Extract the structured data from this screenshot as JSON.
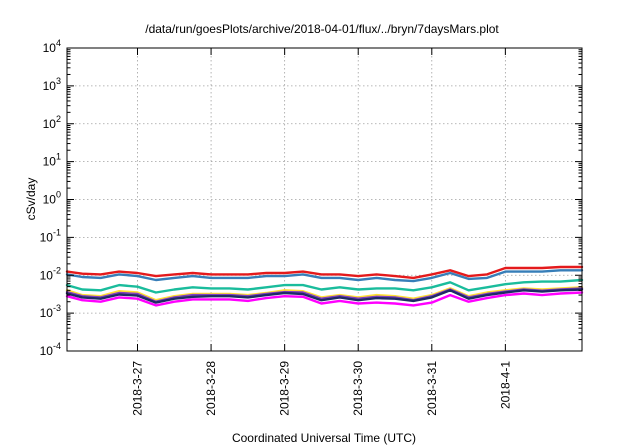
{
  "chart_data": {
    "type": "line",
    "title": "/data/run/goesPlots/archive/2018-04-01/flux/../bryn/7daysMars.plot",
    "xlabel": "Coordinated Universal Time (UTC)",
    "ylabel": "cSv/day",
    "yscale": "log",
    "ylim": [
      0.0001,
      10000
    ],
    "y_ticks": [
      {
        "value": 0.0001,
        "base": "10",
        "exp": "-4"
      },
      {
        "value": 0.001,
        "base": "10",
        "exp": "-3"
      },
      {
        "value": 0.01,
        "base": "10",
        "exp": "-2"
      },
      {
        "value": 0.1,
        "base": "10",
        "exp": "-1"
      },
      {
        "value": 1,
        "base": "10",
        "exp": "0"
      },
      {
        "value": 10,
        "base": "10",
        "exp": "1"
      },
      {
        "value": 100,
        "base": "10",
        "exp": "2"
      },
      {
        "value": 1000,
        "base": "10",
        "exp": "3"
      },
      {
        "value": 10000,
        "base": "10",
        "exp": "4"
      }
    ],
    "xlim": [
      "2018-03-26 01:00",
      "2018-04-02 01:00"
    ],
    "x_ticks": [
      "2018-3-27",
      "2018-3-28",
      "2018-3-29",
      "2018-3-30",
      "2018-3-31",
      "2018-4-1"
    ],
    "grid": true,
    "x": [
      "2018-03-26 01:00",
      "2018-03-26 06:00",
      "2018-03-26 12:00",
      "2018-03-26 18:00",
      "2018-03-27 00:00",
      "2018-03-27 06:00",
      "2018-03-27 12:00",
      "2018-03-27 18:00",
      "2018-03-28 00:00",
      "2018-03-28 06:00",
      "2018-03-28 12:00",
      "2018-03-28 18:00",
      "2018-03-29 00:00",
      "2018-03-29 06:00",
      "2018-03-29 12:00",
      "2018-03-29 18:00",
      "2018-03-30 00:00",
      "2018-03-30 06:00",
      "2018-03-30 12:00",
      "2018-03-30 18:00",
      "2018-03-31 00:00",
      "2018-03-31 06:00",
      "2018-03-31 12:00",
      "2018-03-31 18:00",
      "2018-04-01 00:00",
      "2018-04-01 06:00",
      "2018-04-01 12:00",
      "2018-04-01 18:00",
      "2018-04-02 01:00"
    ],
    "series": [
      {
        "color": "#e41a1c",
        "values": [
          0.0125,
          0.011,
          0.0105,
          0.0125,
          0.0115,
          0.0095,
          0.0105,
          0.0115,
          0.0105,
          0.0105,
          0.0105,
          0.0115,
          0.0115,
          0.0125,
          0.0105,
          0.0105,
          0.0095,
          0.0105,
          0.0095,
          0.0085,
          0.0105,
          0.0135,
          0.0095,
          0.0105,
          0.0155,
          0.0155,
          0.0155,
          0.0165,
          0.0165
        ]
      },
      {
        "color": "#377eb8",
        "values": [
          0.0105,
          0.009,
          0.0085,
          0.0105,
          0.0095,
          0.0075,
          0.0085,
          0.0095,
          0.0085,
          0.0085,
          0.0085,
          0.0095,
          0.0095,
          0.0105,
          0.0085,
          0.0085,
          0.0075,
          0.0085,
          0.0075,
          0.007,
          0.0085,
          0.0115,
          0.008,
          0.0085,
          0.0125,
          0.0125,
          0.0125,
          0.0135,
          0.0135
        ]
      },
      {
        "color": "#1abc9c",
        "values": [
          0.0055,
          0.0042,
          0.004,
          0.0055,
          0.005,
          0.0035,
          0.0042,
          0.0048,
          0.0045,
          0.0045,
          0.0042,
          0.0048,
          0.0055,
          0.0055,
          0.0042,
          0.0048,
          0.0042,
          0.0045,
          0.0045,
          0.004,
          0.0048,
          0.0065,
          0.004,
          0.0048,
          0.0058,
          0.0065,
          0.0068,
          0.0068,
          0.0075
        ]
      },
      {
        "color": "#ffe033",
        "values": [
          0.004,
          0.003,
          0.0028,
          0.0038,
          0.0035,
          0.0022,
          0.0028,
          0.0032,
          0.0032,
          0.0032,
          0.003,
          0.0034,
          0.004,
          0.0038,
          0.0026,
          0.003,
          0.0026,
          0.003,
          0.0028,
          0.0024,
          0.003,
          0.0045,
          0.0028,
          0.0035,
          0.004,
          0.0045,
          0.0042,
          0.0045,
          0.0048
        ]
      },
      {
        "color": "#7f3fbf",
        "values": [
          0.0036,
          0.0028,
          0.0026,
          0.0034,
          0.0032,
          0.002,
          0.0026,
          0.003,
          0.003,
          0.003,
          0.0028,
          0.0032,
          0.0036,
          0.0035,
          0.0024,
          0.0028,
          0.0024,
          0.0027,
          0.0026,
          0.0022,
          0.0028,
          0.0042,
          0.0026,
          0.0032,
          0.0037,
          0.0042,
          0.0039,
          0.0042,
          0.0045
        ]
      },
      {
        "color": "#1f2a66",
        "values": [
          0.0033,
          0.0026,
          0.0024,
          0.0031,
          0.0029,
          0.0019,
          0.0024,
          0.0027,
          0.0028,
          0.0028,
          0.0026,
          0.003,
          0.0034,
          0.0032,
          0.0022,
          0.0026,
          0.0022,
          0.0025,
          0.0024,
          0.0021,
          0.0026,
          0.004,
          0.0024,
          0.003,
          0.0035,
          0.004,
          0.0037,
          0.004,
          0.0042
        ]
      },
      {
        "color": "#ff00ff",
        "values": [
          0.0028,
          0.0022,
          0.002,
          0.0026,
          0.0024,
          0.0016,
          0.002,
          0.0023,
          0.0023,
          0.0023,
          0.0021,
          0.0025,
          0.0028,
          0.0027,
          0.0018,
          0.0021,
          0.0018,
          0.0019,
          0.0018,
          0.0016,
          0.0019,
          0.003,
          0.002,
          0.0025,
          0.003,
          0.0033,
          0.003,
          0.0033,
          0.0035
        ]
      }
    ]
  }
}
